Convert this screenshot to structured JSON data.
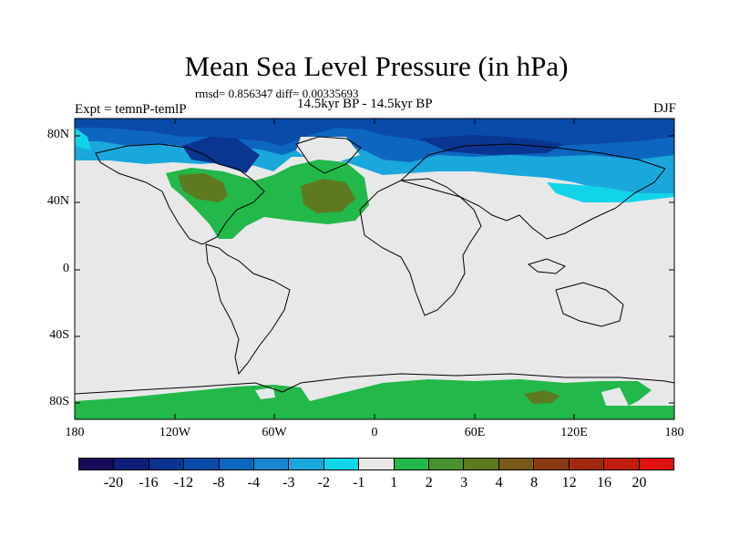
{
  "map": {
    "title": "Mean Sea Level Pressure (in hPa)",
    "stats": "rmsd= 0.856347 diff= 0.00335693",
    "experiment": "Expt = temnP-temlP",
    "period": "14.5kyr BP - 14.5kyr BP",
    "season": "DJF",
    "lat_labels": [
      "80N",
      "40N",
      "0",
      "40S",
      "80S"
    ],
    "lon_labels": [
      "180",
      "120W",
      "60W",
      "0",
      "60E",
      "120E",
      "180"
    ]
  },
  "colorbar": {
    "colors": [
      "#1a0b5a",
      "#0d1f7a",
      "#0a3590",
      "#0a4aa8",
      "#0d66c0",
      "#1a86d0",
      "#1aa7dc",
      "#12d4e8",
      "#e8e8e8",
      "#22b84a",
      "#4a9230",
      "#5e7a20",
      "#7a5a18",
      "#8a3a10",
      "#a02a10",
      "#c01e10",
      "#e00f10"
    ],
    "labels": [
      "-20",
      "-16",
      "-12",
      "-8",
      "-4",
      "-3",
      "-2",
      "-1",
      "1",
      "2",
      "3",
      "4",
      "8",
      "12",
      "16",
      "20"
    ]
  }
}
